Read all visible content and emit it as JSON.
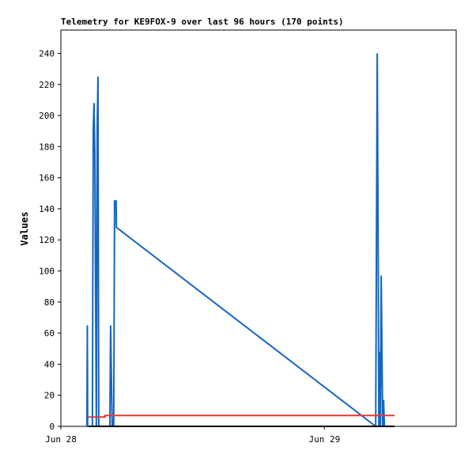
{
  "chart_data": {
    "type": "line",
    "title": "Telemetry for KE9FOX-9 over last 96 hours (170 points)",
    "y_label": "Values",
    "xlim": [
      0,
      36
    ],
    "xticks": [
      {
        "value": 0,
        "label": "Jun 28"
      },
      {
        "value": 24,
        "label": "Jun 29"
      }
    ],
    "ylim": [
      0,
      255
    ],
    "yticks": [
      0,
      20,
      40,
      60,
      80,
      100,
      120,
      140,
      160,
      180,
      200,
      220,
      240
    ],
    "series": [
      {
        "color": "#1565c0",
        "x": [
          2.37,
          2.41,
          2.44,
          2.87,
          2.95,
          3.02,
          3.09,
          3.16,
          3.23,
          3.31,
          3.38,
          3.45,
          4.46,
          4.53,
          4.6,
          4.67,
          4.81,
          4.89,
          5.03,
          5.06,
          28.67,
          28.81,
          28.89,
          28.96,
          29.03,
          29.1,
          29.17,
          29.24,
          29.31,
          29.39,
          29.46,
          30.39
        ],
        "values": [
          0,
          65,
          0,
          0,
          192,
          208,
          177,
          88,
          0,
          192,
          225,
          0,
          0,
          65,
          32,
          0,
          0,
          145,
          145,
          128,
          0,
          240,
          121,
          0,
          48,
          0,
          97,
          48,
          0,
          17,
          0,
          0
        ]
      },
      {
        "color": "#e53935",
        "x": [
          2.51,
          4.02,
          4.03,
          30.39
        ],
        "values": [
          6,
          6,
          7,
          7
        ]
      },
      {
        "color": "#000000",
        "x": [
          2.51,
          30.39
        ],
        "values": [
          0,
          0
        ]
      }
    ]
  }
}
